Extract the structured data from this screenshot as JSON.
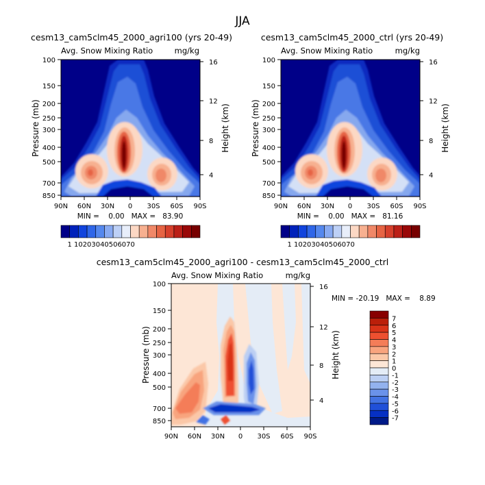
{
  "figure_title": "JJA",
  "chart_data": [
    {
      "type": "heatmap",
      "subtitle": "cesm13_cam5clm45_2000_agri100 (yrs 20-49)",
      "title": "Avg. Snow Mixing Ratio",
      "units": "mg/kg",
      "xlabel": "",
      "ylabel": "Pressure (mb)",
      "ylabel_right": "Height (km)",
      "x_ticks": [
        "90N",
        "60N",
        "30N",
        "0",
        "30S",
        "60S",
        "90S"
      ],
      "y_ticks": [
        "100",
        "150",
        "200",
        "250",
        "300",
        "400",
        "500",
        "700",
        "850"
      ],
      "y_ticks_right": [
        "4",
        "8",
        "12",
        "16"
      ],
      "stats_text": "MIN =    0.00   MAX =   83.90",
      "min": 0.0,
      "max": 83.9,
      "colorbar_labels": [
        "1",
        "10",
        "20",
        "30",
        "40",
        "50",
        "60",
        "70"
      ],
      "colorbar_colors": [
        "#000088",
        "#0022bb",
        "#1144dd",
        "#2f66e8",
        "#5588ee",
        "#88aaf2",
        "#bdd0f6",
        "#e8eefa",
        "#fcd8c4",
        "#f7b090",
        "#f08868",
        "#e66444",
        "#d6402c",
        "#bb2018",
        "#990808",
        "#770000"
      ]
    },
    {
      "type": "heatmap",
      "subtitle": "cesm13_cam5clm45_2000_ctrl (yrs 20-49)",
      "title": "Avg. Snow Mixing Ratio",
      "units": "mg/kg",
      "xlabel": "",
      "ylabel": "Pressure (mb)",
      "ylabel_right": "Height (km)",
      "x_ticks": [
        "90N",
        "60N",
        "30N",
        "0",
        "30S",
        "60S",
        "90S"
      ],
      "y_ticks": [
        "100",
        "150",
        "200",
        "250",
        "300",
        "400",
        "500",
        "700",
        "850"
      ],
      "y_ticks_right": [
        "4",
        "8",
        "12",
        "16"
      ],
      "stats_text": "MIN =    0.00   MAX =   81.16",
      "min": 0.0,
      "max": 81.16,
      "colorbar_labels": [
        "1",
        "10",
        "20",
        "30",
        "40",
        "50",
        "60",
        "70"
      ],
      "colorbar_colors": [
        "#000088",
        "#0022bb",
        "#1144dd",
        "#2f66e8",
        "#5588ee",
        "#88aaf2",
        "#bdd0f6",
        "#e8eefa",
        "#fcd8c4",
        "#f7b090",
        "#f08868",
        "#e66444",
        "#d6402c",
        "#bb2018",
        "#990808",
        "#770000"
      ]
    },
    {
      "type": "heatmap",
      "subtitle": "cesm13_cam5clm45_2000_agri100 - cesm13_cam5clm45_2000_ctrl",
      "title": "Avg. Snow Mixing Ratio",
      "units": "mg/kg",
      "xlabel": "",
      "ylabel": "Pressure (mb)",
      "ylabel_right": "Height (km)",
      "x_ticks": [
        "90N",
        "60N",
        "30N",
        "0",
        "30S",
        "60S",
        "90S"
      ],
      "y_ticks": [
        "100",
        "150",
        "200",
        "250",
        "300",
        "400",
        "500",
        "700",
        "850"
      ],
      "y_ticks_right": [
        "4",
        "8",
        "12",
        "16"
      ],
      "stats_text": "MIN = -20.19   MAX =    8.89",
      "min": -20.19,
      "max": 8.89,
      "colorbar_labels": [
        "7",
        "6",
        "5",
        "4",
        "3",
        "2",
        "1",
        "0",
        "-1",
        "-2",
        "-3",
        "-4",
        "-5",
        "-6",
        "-7"
      ],
      "colorbar_colors": [
        "#880000",
        "#bb1f0a",
        "#d93318",
        "#ee5030",
        "#f47d58",
        "#f8a47e",
        "#fbc8a8",
        "#fde6d6",
        "#e4ecf6",
        "#bccff3",
        "#93b2ef",
        "#6a92ea",
        "#4272e3",
        "#2050d8",
        "#0630c4",
        "#001a88"
      ]
    }
  ]
}
